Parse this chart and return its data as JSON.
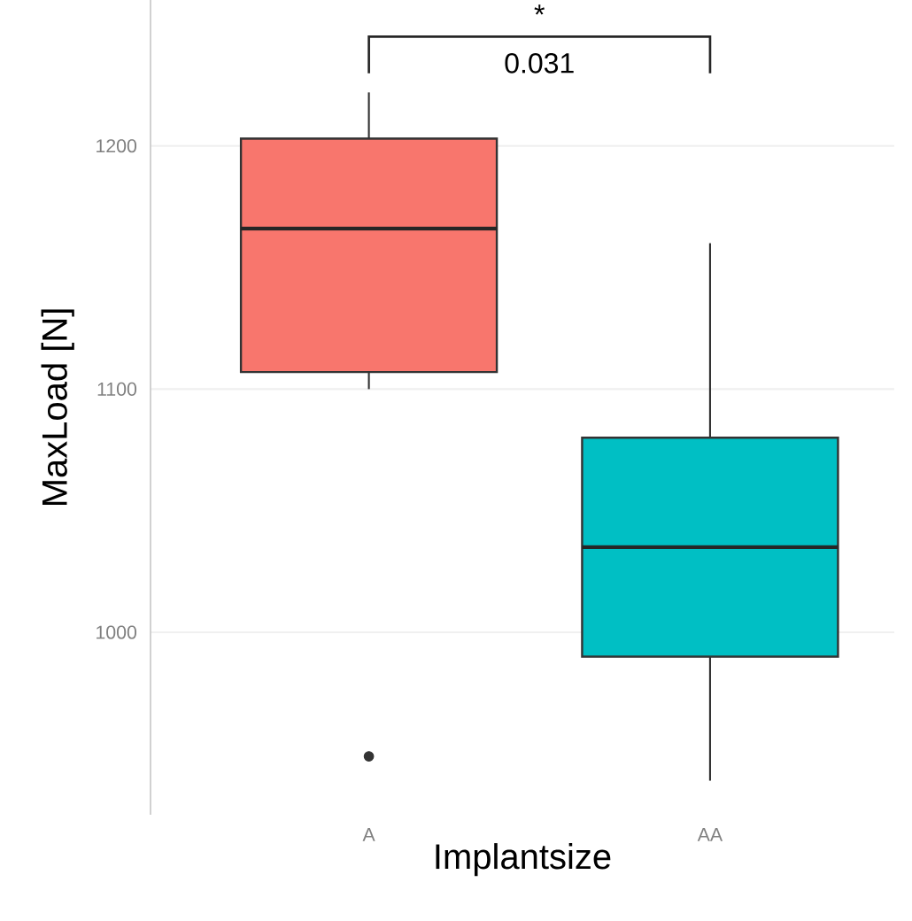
{
  "chart_data": {
    "type": "box",
    "xlabel": "Implantsize",
    "ylabel": "MaxLoad [N]",
    "categories": [
      "A",
      "AA"
    ],
    "boxes": [
      {
        "low": 1100,
        "q1": 1107,
        "median": 1166,
        "q3": 1203,
        "high": 1222,
        "outliers": [
          949
        ]
      },
      {
        "low": 939,
        "q1": 990,
        "median": 1035,
        "q3": 1080,
        "high": 1160
      }
    ],
    "colors": [
      "#f8766d",
      "#00bfc4"
    ],
    "ylim": [
      925,
      1260
    ],
    "yticks": [
      1000,
      1100,
      1200
    ],
    "grid": "y",
    "annotations": [
      "*",
      "0.031"
    ]
  }
}
